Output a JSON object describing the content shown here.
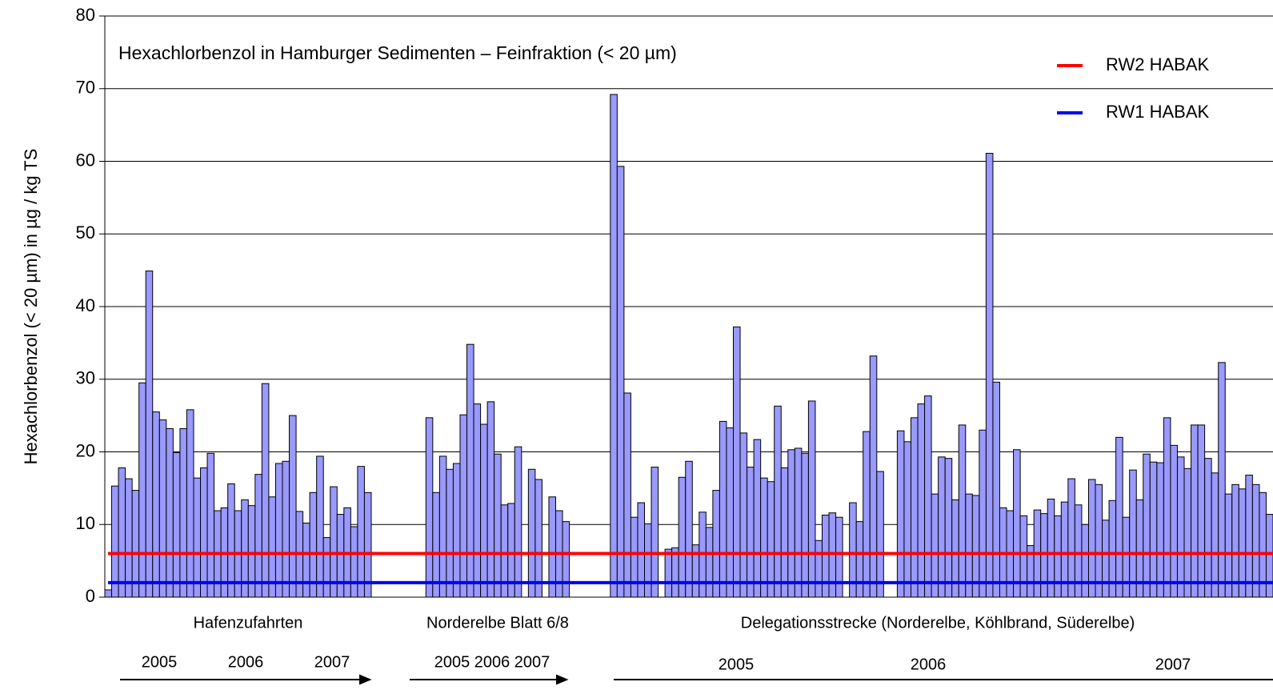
{
  "chart_data": {
    "type": "bar",
    "title": "Hexachlorbenzol in Hamburger Sedimenten – Feinfraktion (< 20 µm)",
    "y_label": "Hexachlorbenzol (< 20 µm) in µg / kg TS",
    "color": "#9999ff",
    "categories": [
      null,
      null,
      null,
      null,
      null,
      null,
      null,
      null,
      null,
      null,
      null,
      null,
      null,
      null,
      null,
      null,
      null,
      null,
      null,
      null,
      null,
      null,
      null,
      null,
      null,
      null,
      null,
      null,
      null,
      null,
      null,
      null,
      null,
      null,
      null,
      null,
      null,
      null,
      null,
      null,
      null,
      null,
      null,
      null,
      null,
      null,
      null,
      null,
      null,
      null,
      null,
      null,
      null,
      null,
      null,
      null,
      null,
      null,
      null,
      null,
      null,
      null,
      null,
      null,
      null,
      null,
      null,
      null,
      null,
      null,
      null,
      null,
      null,
      null,
      null,
      null,
      null,
      null,
      null,
      null,
      null,
      null,
      null,
      null,
      null,
      null,
      null,
      null,
      null,
      null,
      null,
      null,
      null,
      null,
      null,
      null,
      null,
      null,
      null,
      null,
      null,
      null,
      null,
      null,
      null,
      null,
      null,
      null,
      null,
      null,
      null,
      null,
      null,
      null,
      null,
      null,
      null,
      null,
      null,
      null,
      null,
      null,
      null,
      null,
      null,
      null,
      null,
      null,
      null,
      null,
      null,
      null,
      null,
      null,
      null,
      null,
      null,
      null,
      null,
      null,
      null,
      null,
      null,
      null,
      null,
      null,
      null,
      null,
      null,
      null,
      null,
      null,
      null,
      null,
      null,
      null,
      null,
      null,
      null,
      null,
      null,
      null,
      null,
      null,
      null,
      null,
      null,
      null,
      null,
      null,
      null
    ],
    "values": [
      1,
      15.3,
      17.8,
      16.3,
      14.7,
      29.5,
      44.9,
      25.5,
      24.4,
      23.2,
      19.9,
      23.2,
      25.8,
      16.4,
      17.8,
      19.8,
      11.9,
      12.3,
      15.6,
      11.9,
      13.4,
      12.6,
      16.9,
      29.4,
      13.8,
      18.4,
      18.7,
      25.0,
      11.8,
      10.2,
      14.4,
      19.4,
      8.2,
      15.2,
      11.4,
      12.3,
      9.7,
      18.0,
      14.4,
      null,
      null,
      null,
      null,
      null,
      null,
      null,
      null,
      24.7,
      14.4,
      19.4,
      17.6,
      18.4,
      25.1,
      34.8,
      26.6,
      23.8,
      26.9,
      19.7,
      12.7,
      12.9,
      20.7,
      null,
      17.6,
      16.2,
      null,
      13.8,
      11.9,
      10.4,
      null,
      null,
      null,
      null,
      null,
      null,
      69.2,
      59.3,
      28.1,
      11.0,
      13.0,
      10.1,
      17.9,
      null,
      6.6,
      6.8,
      16.5,
      18.7,
      7.2,
      11.7,
      9.6,
      14.7,
      24.2,
      23.3,
      37.2,
      22.6,
      17.9,
      21.7,
      16.4,
      15.9,
      26.3,
      17.8,
      20.3,
      20.5,
      19.8,
      27.0,
      7.8,
      11.3,
      11.6,
      11.0,
      null,
      13.0,
      10.4,
      22.8,
      33.2,
      17.3,
      null,
      null,
      22.9,
      21.4,
      24.7,
      26.6,
      27.7,
      14.2,
      19.3,
      19.1,
      13.4,
      23.7,
      14.2,
      14.0,
      23.0,
      61.1,
      29.6,
      12.3,
      11.9,
      20.3,
      11.2,
      7.1,
      12.0,
      11.5,
      13.5,
      11.2,
      13.1,
      16.3,
      12.7,
      10.0,
      16.2,
      15.5,
      10.6,
      13.3,
      22.0,
      11.0,
      17.5,
      13.4,
      19.7,
      18.6,
      18.5,
      24.7,
      20.9,
      19.3,
      17.7,
      23.7,
      23.7,
      19.1,
      17.1,
      32.3,
      14.2,
      15.5,
      14.9,
      16.8,
      15.5,
      14.4,
      11.4
    ],
    "ylim": [
      0,
      80
    ],
    "yticks": [
      0,
      10,
      20,
      30,
      40,
      50,
      60,
      70,
      80
    ],
    "grid": true,
    "reference_lines": [
      {
        "name": "RW2 HABAK",
        "value": 6,
        "color": "#ff0000"
      },
      {
        "name": "RW1 HABAK",
        "value": 2,
        "color": "#0000ff"
      }
    ],
    "group_labels": [
      "Hafenzufahrten",
      "Norderelbe Blatt 6/8",
      "Delegationsstrecke (Norderelbe, Köhlbrand, Süderelbe)"
    ],
    "year_labels": [
      "2005",
      "2006",
      "2007",
      "2005 2006 2007",
      "2005",
      "2006",
      "2007"
    ]
  }
}
